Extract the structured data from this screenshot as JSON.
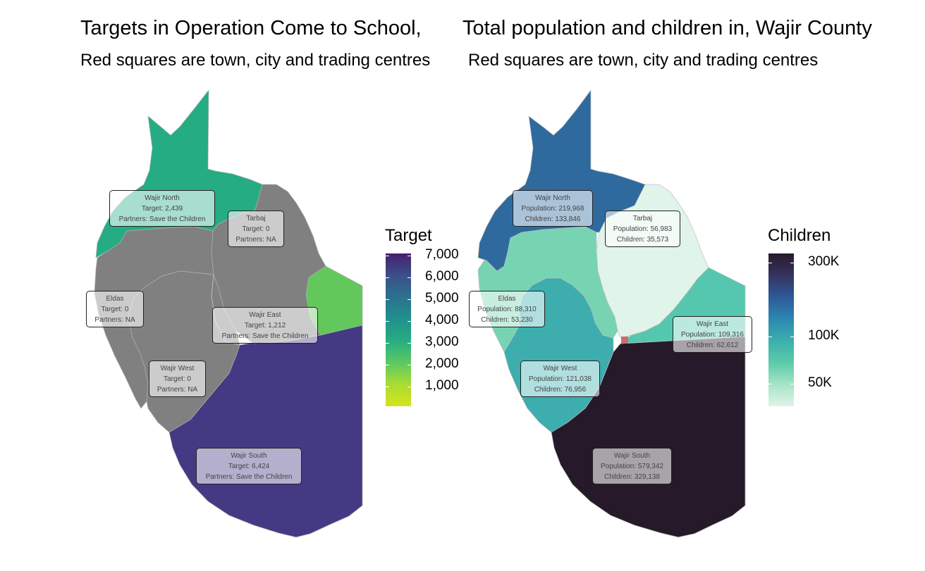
{
  "titles": {
    "left": "Targets in Operation Come to School,",
    "right": "Total population and children in, Wajir County"
  },
  "subtitles": {
    "left": "Red squares are town, city and trading centres",
    "right": "Red squares are town, city and trading centres"
  },
  "left_map": {
    "legend_title": "Target",
    "legend_ticks": [
      "7,000",
      "6,000",
      "5,000",
      "4,000",
      "3,000",
      "2,000",
      "1,000"
    ],
    "colors": {
      "no_data": "#808080",
      "wajir_north": "#26AC82",
      "tarbaj": "#808080",
      "eldas": "#808080",
      "wajir_east": "#63C85C",
      "wajir_west": "#808080",
      "wajir_south": "#443983",
      "scale": [
        "#481F71",
        "#3C4F8A",
        "#2C718E",
        "#21908D",
        "#27AD81",
        "#5CC863",
        "#AADC32",
        "#D6E31C"
      ]
    },
    "regions": [
      {
        "name": "Wajir North",
        "line2": "Target: 2,439",
        "line3": "Partners: Save the Children"
      },
      {
        "name": "Tarbaj",
        "line2": "Target: 0",
        "line3": "Partners: NA"
      },
      {
        "name": "Eldas",
        "line2": "Target: 0",
        "line3": "Partners: NA"
      },
      {
        "name": "Wajir East",
        "line2": "Target: 1,212",
        "line3": "Partners: Save the Children"
      },
      {
        "name": "Wajir West",
        "line2": "Target: 0",
        "line3": "Partners: NA"
      },
      {
        "name": "Wajir South",
        "line2": "Target: 6,424",
        "line3": "Partners: Save the Children"
      }
    ]
  },
  "right_map": {
    "legend_title": "Children",
    "legend_ticks": [
      "300K",
      "100K",
      "50K"
    ],
    "colors": {
      "wajir_north": "#2F6A9E",
      "tarbaj": "#E1F4EA",
      "eldas": "#77D4B2",
      "wajir_east": "#56C7AF",
      "wajir_west": "#3DADAE",
      "wajir_south": "#26192A",
      "town_marker": "#D06B6B",
      "scale": [
        "#2A1A2D",
        "#36335F",
        "#2E5A9A",
        "#2C87B0",
        "#3BAFAE",
        "#5BCBAA",
        "#A5E4C6",
        "#DEF5E8"
      ]
    },
    "regions": [
      {
        "name": "Wajir North",
        "line2": "Population: 219,968",
        "line3": "Children: 133,846"
      },
      {
        "name": "Tarbaj",
        "line2": "Population: 56,983",
        "line3": "Children: 35,573"
      },
      {
        "name": "Eldas",
        "line2": "Population: 88,310",
        "line3": "Children: 53,230"
      },
      {
        "name": "Wajir East",
        "line2": "Population: 109,316",
        "line3": "Children: 62,612"
      },
      {
        "name": "Wajir West",
        "line2": "Population: 121,038",
        "line3": "Children: 76,956"
      },
      {
        "name": "Wajir South",
        "line2": "Population: 579,342",
        "line3": "Children: 329,138"
      }
    ]
  }
}
